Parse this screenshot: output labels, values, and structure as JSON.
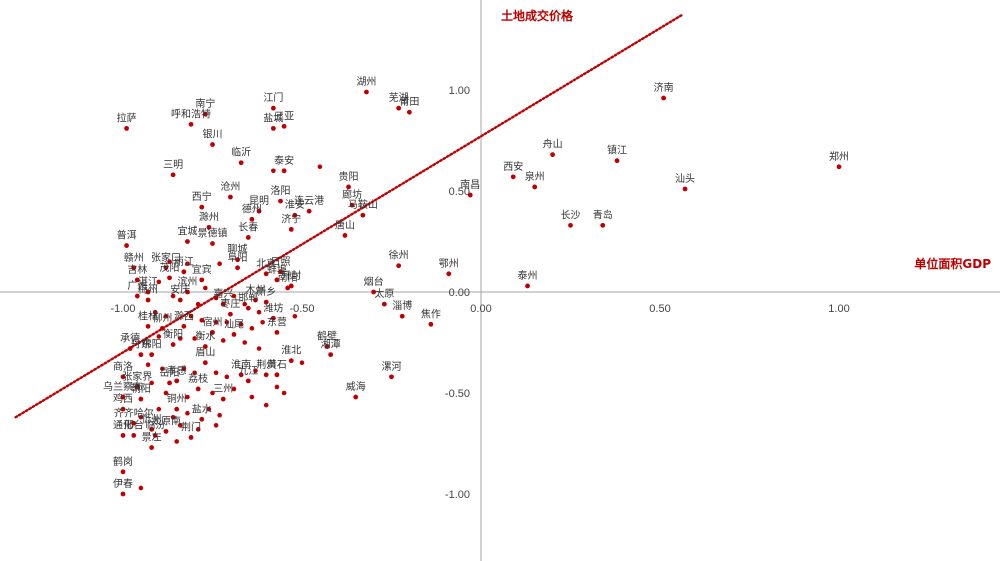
{
  "chart_data": {
    "type": "scatter",
    "xlabel": "单位面积GDP",
    "ylabel": "土地成交价格",
    "xlim": [
      -1.35,
      1.45
    ],
    "ylim": [
      -1.33,
      1.37
    ],
    "x_ticks": [
      "-1.00",
      "-0.50",
      "0.00",
      "0.50",
      "1.00"
    ],
    "y_ticks": [
      "1.00",
      "0.50",
      "0.00",
      "-0.50",
      "-1.00"
    ],
    "trendline": {
      "style": "dotted",
      "color": "#c00000",
      "x": [
        -1.3,
        0.56
      ],
      "y": [
        -0.62,
        1.37
      ]
    },
    "point_color": "#c00000",
    "points": [
      {
        "name": "郑州",
        "x": 1.0,
        "y": 0.62
      },
      {
        "name": "济南",
        "x": 0.51,
        "y": 0.96
      },
      {
        "name": "汕头",
        "x": 0.57,
        "y": 0.51
      },
      {
        "name": "镇江",
        "x": 0.38,
        "y": 0.65
      },
      {
        "name": "青岛",
        "x": 0.34,
        "y": 0.33
      },
      {
        "name": "舟山",
        "x": 0.2,
        "y": 0.68
      },
      {
        "name": "长沙",
        "x": 0.25,
        "y": 0.33
      },
      {
        "name": "泉州",
        "x": 0.15,
        "y": 0.52
      },
      {
        "name": "西安",
        "x": 0.09,
        "y": 0.57
      },
      {
        "name": "泰州",
        "x": 0.13,
        "y": 0.03
      },
      {
        "name": "南昌",
        "x": -0.03,
        "y": 0.48
      },
      {
        "name": "鄂州",
        "x": -0.09,
        "y": 0.09
      },
      {
        "name": "焦作",
        "x": -0.14,
        "y": -0.16
      },
      {
        "name": "淄博",
        "x": -0.22,
        "y": -0.12
      },
      {
        "name": "太原",
        "x": -0.27,
        "y": -0.06
      },
      {
        "name": "烟台",
        "x": -0.3,
        "y": 0.0
      },
      {
        "name": "徐州",
        "x": -0.23,
        "y": 0.13
      },
      {
        "name": "漯河",
        "x": -0.25,
        "y": -0.42
      },
      {
        "name": "威海",
        "x": -0.35,
        "y": -0.52
      },
      {
        "name": "湘潭",
        "x": -0.42,
        "y": -0.31
      },
      {
        "name": "鹤壁",
        "x": -0.43,
        "y": -0.27
      },
      {
        "name": "淮北",
        "x": -0.53,
        "y": -0.34
      },
      {
        "name": "黄石",
        "x": -0.57,
        "y": -0.41
      },
      {
        "name": "湖州",
        "x": -0.32,
        "y": 0.99
      },
      {
        "name": "芜湖",
        "x": -0.23,
        "y": 0.91
      },
      {
        "name": "莆田",
        "x": -0.2,
        "y": 0.89
      },
      {
        "name": "江门",
        "x": -0.58,
        "y": 0.91
      },
      {
        "name": "三亚",
        "x": -0.55,
        "y": 0.82
      },
      {
        "name": "盐城",
        "x": -0.58,
        "y": 0.81
      },
      {
        "name": "贵阳",
        "x": -0.37,
        "y": 0.52
      },
      {
        "name": "廊坊",
        "x": -0.36,
        "y": 0.43
      },
      {
        "name": "马鞍山",
        "x": -0.33,
        "y": 0.38
      },
      {
        "name": "唐山",
        "x": -0.38,
        "y": 0.28
      },
      {
        "name": "连云港",
        "x": -0.48,
        "y": 0.4
      },
      {
        "name": "淮安",
        "x": -0.52,
        "y": 0.38
      },
      {
        "name": "济宁",
        "x": -0.53,
        "y": 0.31
      },
      {
        "name": "洛阳",
        "x": -0.56,
        "y": 0.45
      },
      {
        "name": "泰安",
        "x": -0.55,
        "y": 0.6
      },
      {
        "name": "临沂",
        "x": -0.67,
        "y": 0.64
      },
      {
        "name": "沧州",
        "x": -0.7,
        "y": 0.47
      },
      {
        "name": "昆明",
        "x": -0.62,
        "y": 0.4
      },
      {
        "name": "德州",
        "x": -0.64,
        "y": 0.36
      },
      {
        "name": "长春",
        "x": -0.65,
        "y": 0.27
      },
      {
        "name": "滁州",
        "x": -0.76,
        "y": 0.32
      },
      {
        "name": "宜城",
        "x": -0.82,
        "y": 0.25
      },
      {
        "name": "景德镇",
        "x": -0.75,
        "y": 0.24
      },
      {
        "name": "聊城",
        "x": -0.68,
        "y": 0.16
      },
      {
        "name": "阜阳",
        "x": -0.68,
        "y": 0.12
      },
      {
        "name": "日照",
        "x": -0.56,
        "y": 0.1
      },
      {
        "name": "北京",
        "x": -0.6,
        "y": 0.09
      },
      {
        "name": "蚌埠",
        "x": -0.57,
        "y": 0.06
      },
      {
        "name": "开封",
        "x": -0.53,
        "y": 0.03
      },
      {
        "name": "南阳",
        "x": -0.54,
        "y": 0.02
      },
      {
        "name": "西宁",
        "x": -0.78,
        "y": 0.42
      },
      {
        "name": "三明",
        "x": -0.86,
        "y": 0.58
      },
      {
        "name": "银川",
        "x": -0.75,
        "y": 0.73
      },
      {
        "name": "南宁",
        "x": -0.77,
        "y": 0.88
      },
      {
        "name": "呼和浩特",
        "x": -0.81,
        "y": 0.83
      },
      {
        "name": "拉萨",
        "x": -0.99,
        "y": 0.81
      },
      {
        "name": "普洱",
        "x": -0.99,
        "y": 0.23
      },
      {
        "name": "赣州",
        "x": -0.97,
        "y": 0.12
      },
      {
        "name": "张家口",
        "x": -0.88,
        "y": 0.12
      },
      {
        "name": "丽江",
        "x": -0.83,
        "y": 0.1
      },
      {
        "name": "吉林",
        "x": -0.96,
        "y": 0.06
      },
      {
        "name": "宜宾",
        "x": -0.78,
        "y": 0.06
      },
      {
        "name": "茂阳",
        "x": -0.87,
        "y": 0.07
      },
      {
        "name": "广州",
        "x": -0.96,
        "y": -0.02
      },
      {
        "name": "梅州",
        "x": -0.93,
        "y": -0.04
      },
      {
        "name": "湛江",
        "x": -0.93,
        "y": 0.0
      },
      {
        "name": "安庆",
        "x": -0.84,
        "y": -0.04
      },
      {
        "name": "滨州",
        "x": -0.82,
        "y": 0.0
      },
      {
        "name": "木州",
        "x": -0.63,
        "y": -0.04
      },
      {
        "name": "新乡",
        "x": -0.6,
        "y": -0.05
      },
      {
        "name": "嘉兴",
        "x": -0.72,
        "y": -0.06
      },
      {
        "name": "邯郸",
        "x": -0.65,
        "y": -0.08
      },
      {
        "name": "枣庄",
        "x": -0.7,
        "y": -0.11
      },
      {
        "name": "桂林",
        "x": -0.93,
        "y": -0.17
      },
      {
        "name": "柳州",
        "x": -0.89,
        "y": -0.18
      },
      {
        "name": "滁西",
        "x": -0.83,
        "y": -0.17
      },
      {
        "name": "宿州",
        "x": -0.75,
        "y": -0.2
      },
      {
        "name": "东营",
        "x": -0.57,
        "y": -0.2
      },
      {
        "name": "汕尾",
        "x": -0.69,
        "y": -0.21
      },
      {
        "name": "潍坊",
        "x": -0.58,
        "y": -0.13
      },
      {
        "name": "衡水",
        "x": -0.77,
        "y": -0.27
      },
      {
        "name": "衡阳",
        "x": -0.86,
        "y": -0.26
      },
      {
        "name": "承德",
        "x": -0.98,
        "y": -0.28
      },
      {
        "name": "丹东",
        "x": -0.95,
        "y": -0.31
      },
      {
        "name": "绵阳",
        "x": -0.92,
        "y": -0.31
      },
      {
        "name": "眉山",
        "x": -0.77,
        "y": -0.35
      },
      {
        "name": "淮南",
        "x": -0.67,
        "y": -0.41
      },
      {
        "name": "荆州",
        "x": -0.6,
        "y": -0.41
      },
      {
        "name": "九江",
        "x": -0.65,
        "y": -0.44
      },
      {
        "name": "商洛",
        "x": -1.0,
        "y": -0.42
      },
      {
        "name": "张家界",
        "x": -0.96,
        "y": -0.47
      },
      {
        "name": "岳阳",
        "x": -0.87,
        "y": -0.45
      },
      {
        "name": "孝感",
        "x": -0.85,
        "y": -0.44
      },
      {
        "name": "荔枝",
        "x": -0.79,
        "y": -0.48
      },
      {
        "name": "乌兰察布",
        "x": -1.0,
        "y": -0.52
      },
      {
        "name": "朝阳",
        "x": -0.95,
        "y": -0.53
      },
      {
        "name": "铜州",
        "x": -0.85,
        "y": -0.58
      },
      {
        "name": "三州",
        "x": -0.72,
        "y": -0.53
      },
      {
        "name": "盐水",
        "x": -0.78,
        "y": -0.63
      },
      {
        "name": "鸡西",
        "x": -1.0,
        "y": -0.58
      },
      {
        "name": "齐齐哈尔",
        "x": -0.97,
        "y": -0.65
      },
      {
        "name": "通化",
        "x": -1.0,
        "y": -0.71
      },
      {
        "name": "邢台",
        "x": -0.97,
        "y": -0.71
      },
      {
        "name": "忻州",
        "x": -0.92,
        "y": -0.68
      },
      {
        "name": "太原南",
        "x": -0.88,
        "y": -0.69
      },
      {
        "name": "荆门",
        "x": -0.81,
        "y": -0.72
      },
      {
        "name": "临汾",
        "x": -0.91,
        "y": -0.71
      },
      {
        "name": "景左",
        "x": -0.92,
        "y": -0.77
      },
      {
        "name": "鹤岗",
        "x": -1.0,
        "y": -0.89
      },
      {
        "name": "伊春",
        "x": -1.0,
        "y": -1.0
      }
    ],
    "extra_points": [
      {
        "x": -0.45,
        "y": 0.62
      },
      {
        "x": -0.58,
        "y": 0.6
      },
      {
        "x": -0.87,
        "y": 0.15
      },
      {
        "x": -0.82,
        "y": 0.14
      },
      {
        "x": -0.73,
        "y": 0.14
      },
      {
        "x": -0.9,
        "y": 0.05
      },
      {
        "x": -0.77,
        "y": 0.02
      },
      {
        "x": -0.86,
        "y": -0.02
      },
      {
        "x": -0.79,
        "y": -0.06
      },
      {
        "x": -0.74,
        "y": -0.03
      },
      {
        "x": -0.69,
        "y": -0.02
      },
      {
        "x": -0.66,
        "y": -0.06
      },
      {
        "x": -0.62,
        "y": -0.1
      },
      {
        "x": -0.91,
        "y": -0.1
      },
      {
        "x": -0.88,
        "y": -0.12
      },
      {
        "x": -0.81,
        "y": -0.12
      },
      {
        "x": -0.78,
        "y": -0.14
      },
      {
        "x": -0.74,
        "y": -0.15
      },
      {
        "x": -0.71,
        "y": -0.15
      },
      {
        "x": -0.67,
        "y": -0.16
      },
      {
        "x": -0.64,
        "y": -0.18
      },
      {
        "x": -0.61,
        "y": -0.15
      },
      {
        "x": -0.52,
        "y": -0.12
      },
      {
        "x": -0.9,
        "y": -0.22
      },
      {
        "x": -0.84,
        "y": -0.23
      },
      {
        "x": -0.8,
        "y": -0.23
      },
      {
        "x": -0.72,
        "y": -0.24
      },
      {
        "x": -0.66,
        "y": -0.25
      },
      {
        "x": -0.62,
        "y": -0.28
      },
      {
        "x": -0.93,
        "y": -0.36
      },
      {
        "x": -0.89,
        "y": -0.38
      },
      {
        "x": -0.83,
        "y": -0.38
      },
      {
        "x": -0.8,
        "y": -0.4
      },
      {
        "x": -0.74,
        "y": -0.4
      },
      {
        "x": -0.71,
        "y": -0.42
      },
      {
        "x": -0.63,
        "y": -0.39
      },
      {
        "x": -0.57,
        "y": -0.47
      },
      {
        "x": -0.92,
        "y": -0.45
      },
      {
        "x": -0.88,
        "y": -0.5
      },
      {
        "x": -0.82,
        "y": -0.52
      },
      {
        "x": -0.75,
        "y": -0.5
      },
      {
        "x": -0.69,
        "y": -0.48
      },
      {
        "x": -0.64,
        "y": -0.52
      },
      {
        "x": -0.9,
        "y": -0.58
      },
      {
        "x": -0.86,
        "y": -0.62
      },
      {
        "x": -0.82,
        "y": -0.6
      },
      {
        "x": -0.76,
        "y": -0.58
      },
      {
        "x": -0.73,
        "y": -0.61
      },
      {
        "x": -0.84,
        "y": -0.66
      },
      {
        "x": -0.79,
        "y": -0.68
      },
      {
        "x": -0.74,
        "y": -0.66
      },
      {
        "x": -0.95,
        "y": -0.62
      },
      {
        "x": -0.95,
        "y": -0.97
      },
      {
        "x": -0.85,
        "y": -0.74
      },
      {
        "x": -0.6,
        "y": -0.56
      },
      {
        "x": -0.55,
        "y": -0.5
      },
      {
        "x": -0.5,
        "y": -0.35
      }
    ]
  }
}
